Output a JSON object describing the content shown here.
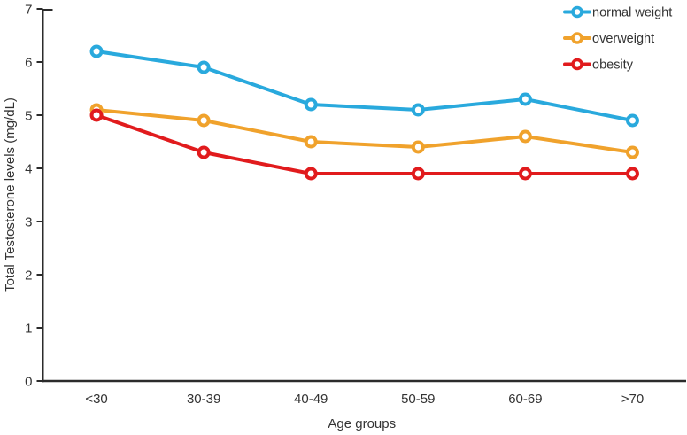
{
  "chart_data": {
    "type": "line",
    "title": "",
    "xlabel": "Age groups",
    "ylabel": "Total Testosterone levels (mg/dL)",
    "categories": [
      "<30",
      "30-39",
      "40-49",
      "50-59",
      "60-69",
      ">70"
    ],
    "series": [
      {
        "name": "normal weight",
        "color": "#29A9DD",
        "values": [
          6.2,
          5.9,
          5.2,
          5.1,
          5.3,
          4.9
        ]
      },
      {
        "name": "overweight",
        "color": "#F0A22C",
        "values": [
          5.1,
          4.9,
          4.5,
          4.4,
          4.6,
          4.3
        ]
      },
      {
        "name": "obesity",
        "color": "#E11B1D",
        "values": [
          5.0,
          4.3,
          3.9,
          3.9,
          3.9,
          3.9
        ]
      }
    ],
    "ylim": [
      0,
      7
    ],
    "yticks": [
      0,
      1,
      2,
      3,
      4,
      5,
      6,
      7
    ],
    "grid": false,
    "legend_position": "top-right",
    "legend_entries": [
      "normal weight",
      "overweight",
      "obesity"
    ],
    "axis_color": "#2B2B2B",
    "label_color": "#333333"
  }
}
